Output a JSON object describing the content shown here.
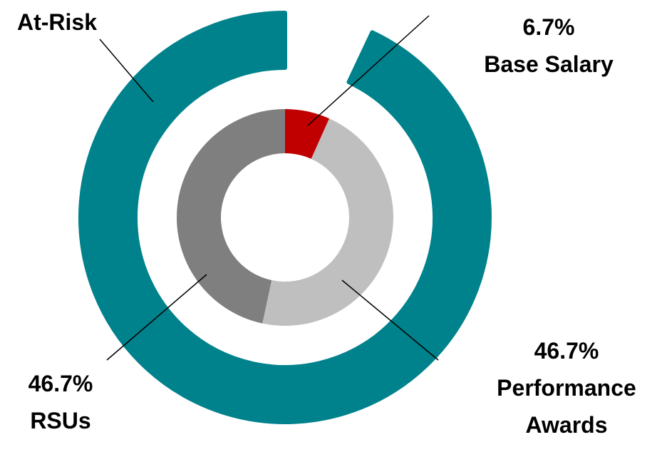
{
  "chart_data": {
    "type": "donut",
    "categories": [
      "Base Salary",
      "Performance Awards",
      "RSUs"
    ],
    "values": [
      6.7,
      46.7,
      46.7
    ],
    "value_labels": [
      "6.7%",
      "46.7%",
      "46.7%"
    ],
    "colors": [
      "#c00000",
      "#bfbfbf",
      "#7f7f7f"
    ],
    "outer": {
      "name": "At-Risk",
      "value": 93.4,
      "color": "#00828c"
    }
  }
}
